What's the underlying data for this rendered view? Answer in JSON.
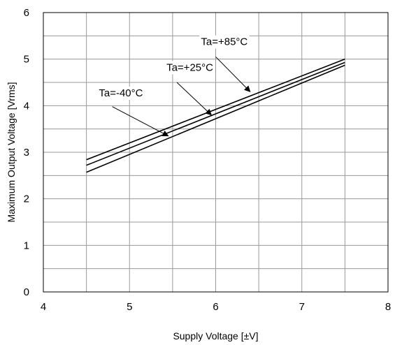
{
  "chart_data": {
    "type": "line",
    "xlabel": "Supply Voltage [±V]",
    "ylabel": "Maximum Output Voltage [Vrms]",
    "xlim": [
      4,
      8
    ],
    "ylim": [
      0,
      6
    ],
    "x_ticks": [
      4,
      5,
      6,
      7,
      8
    ],
    "y_ticks": [
      0,
      1,
      2,
      3,
      4,
      5,
      6
    ],
    "x_minor_step": 0.5,
    "y_minor_step": 0.5,
    "grid": true,
    "line_color": "#000000",
    "grid_color": "#999999",
    "series": [
      {
        "name": "Ta=+85°C",
        "x": [
          4.5,
          7.5
        ],
        "y": [
          2.84,
          5.0
        ]
      },
      {
        "name": "Ta=+25°C",
        "x": [
          4.5,
          7.5
        ],
        "y": [
          2.72,
          4.93
        ]
      },
      {
        "name": "Ta=-40°C",
        "x": [
          4.5,
          7.5
        ],
        "y": [
          2.57,
          4.87
        ]
      }
    ],
    "annotations": [
      {
        "text": "Ta=+85°C",
        "series": 0,
        "label_pos": [
          6.1,
          5.3
        ],
        "arrow_from": [
          6.0,
          5.05
        ],
        "arrow_to": [
          6.4,
          4.3
        ]
      },
      {
        "text": "Ta=+25°C",
        "series": 1,
        "label_pos": [
          5.7,
          4.75
        ],
        "arrow_from": [
          5.55,
          4.5
        ],
        "arrow_to": [
          5.95,
          3.8
        ]
      },
      {
        "text": "Ta=-40°C",
        "series": 2,
        "label_pos": [
          4.9,
          4.2
        ],
        "arrow_from": [
          4.8,
          3.98
        ],
        "arrow_to": [
          5.45,
          3.35
        ]
      }
    ]
  }
}
